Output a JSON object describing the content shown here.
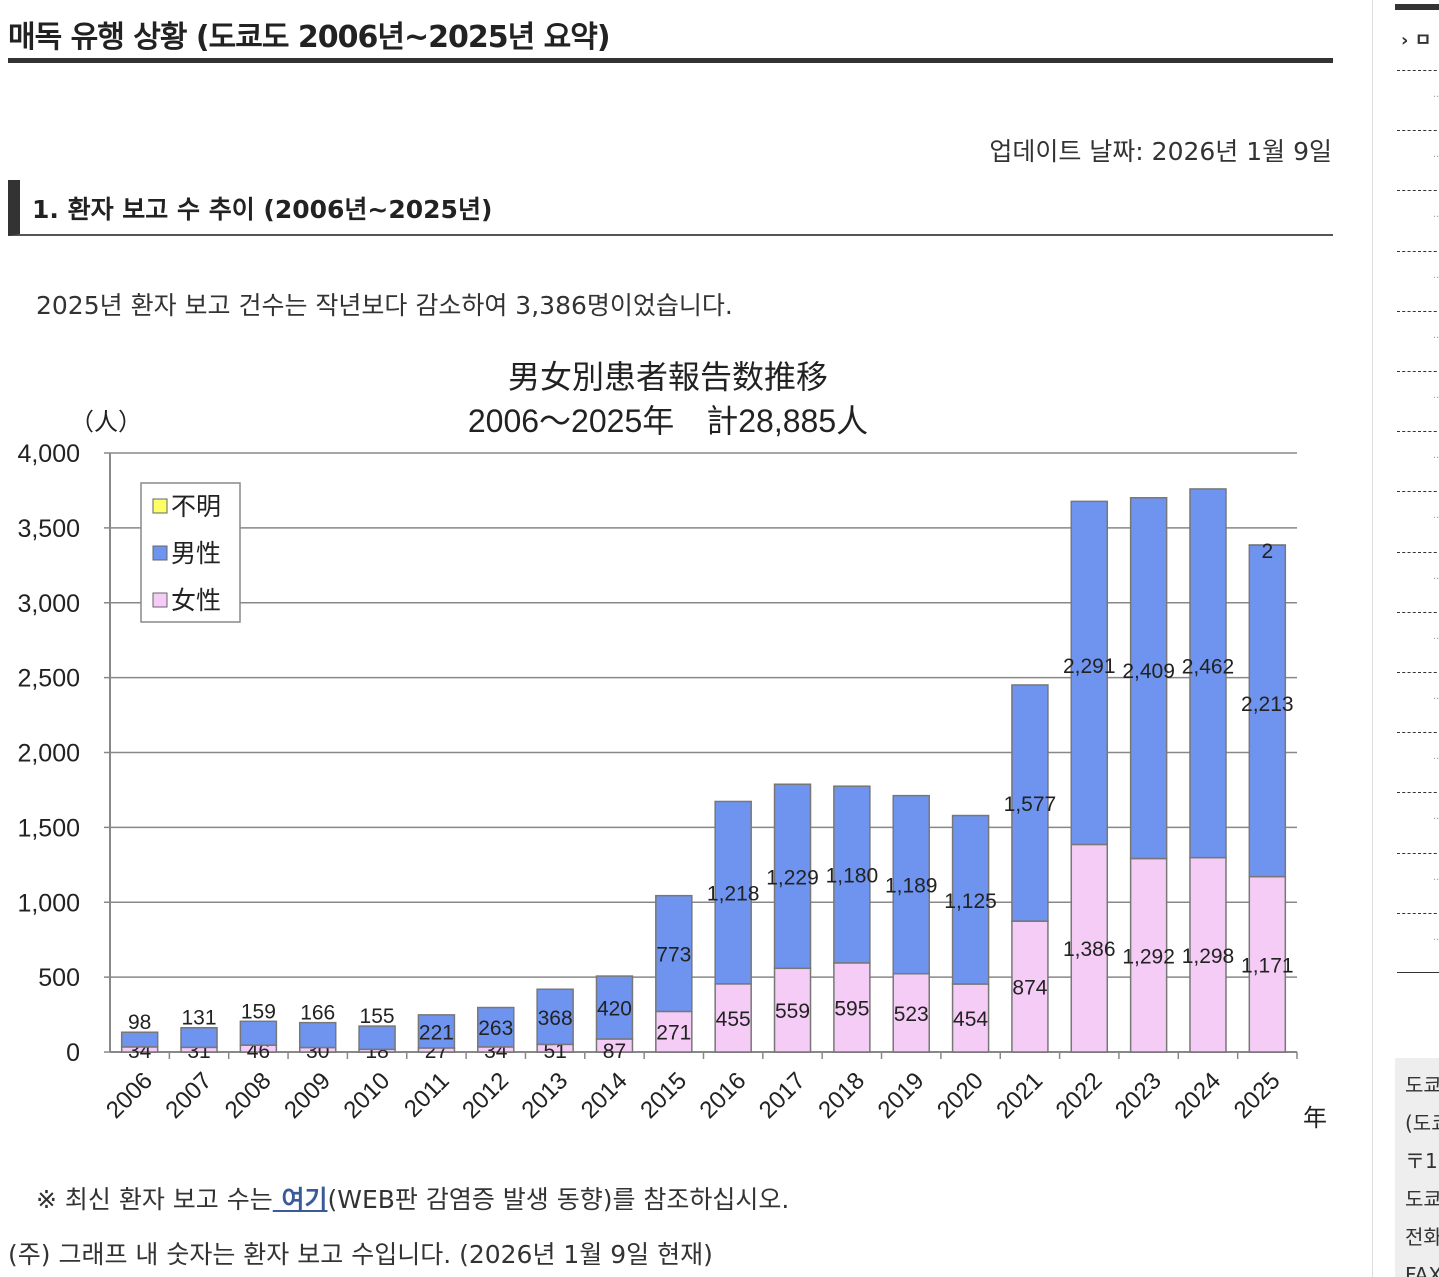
{
  "heading": "매독 유행 상황 (도쿄도 2006년~2025년 요약)",
  "update": "업데이트 날짜: 2026년 1월 9일",
  "section": "1. 환자 보고 수 추이 (2006년~2025년)",
  "summary": "2025년 환자 보고 건수는 작년보다 감소하여 3,386명이었습니다.",
  "note1_pre": "※ 최신 환자 보고 수는",
  "note1_link": " 여기",
  "note1_post": "(WEB판 감염증 발생 동향)를 참조하십시오.",
  "note2": "(주) 그래프 내 숫자는 환자 보고 수입니다. (2026년 1월 9일 현재)",
  "sidebar": {
    "header": "ㅁ",
    "box_lines": [
      "도쿄",
      "(도쿄",
      "〒1",
      "도쿄",
      "전화",
      "FAX"
    ]
  },
  "chart_data": {
    "type": "bar",
    "stacked": true,
    "title": "男女別患者報告数推移",
    "subtitle": "2006～2025年　計28,885人",
    "ylabel": "（人）",
    "xlabel": "年",
    "ylim": [
      0,
      4000
    ],
    "yticks": [
      "0",
      "500",
      "1,000",
      "1,500",
      "2,000",
      "2,500",
      "3,000",
      "3,500",
      "4,000"
    ],
    "categories": [
      "2006",
      "2007",
      "2008",
      "2009",
      "2010",
      "2011",
      "2012",
      "2013",
      "2014",
      "2015",
      "2016",
      "2017",
      "2018",
      "2019",
      "2020",
      "2021",
      "2022",
      "2023",
      "2024",
      "2025"
    ],
    "series": [
      {
        "name": "女性",
        "color": "#f5ccf5",
        "values": [
          34,
          31,
          46,
          30,
          18,
          27,
          34,
          51,
          87,
          271,
          455,
          559,
          595,
          523,
          454,
          874,
          1386,
          1292,
          1298,
          1171
        ]
      },
      {
        "name": "男性",
        "color": "#6f94f0",
        "values": [
          98,
          131,
          159,
          166,
          155,
          221,
          263,
          368,
          420,
          773,
          1218,
          1229,
          1180,
          1189,
          1125,
          1577,
          2291,
          2409,
          2462,
          2213
        ]
      },
      {
        "name": "不明",
        "color": "#ffff66",
        "values": [
          0,
          0,
          0,
          0,
          0,
          0,
          0,
          0,
          0,
          0,
          0,
          0,
          0,
          0,
          0,
          0,
          0,
          0,
          0,
          2
        ]
      }
    ],
    "legend_order": [
      "不明",
      "男性",
      "女性"
    ],
    "legend_position": "top-left",
    "grid": true
  }
}
